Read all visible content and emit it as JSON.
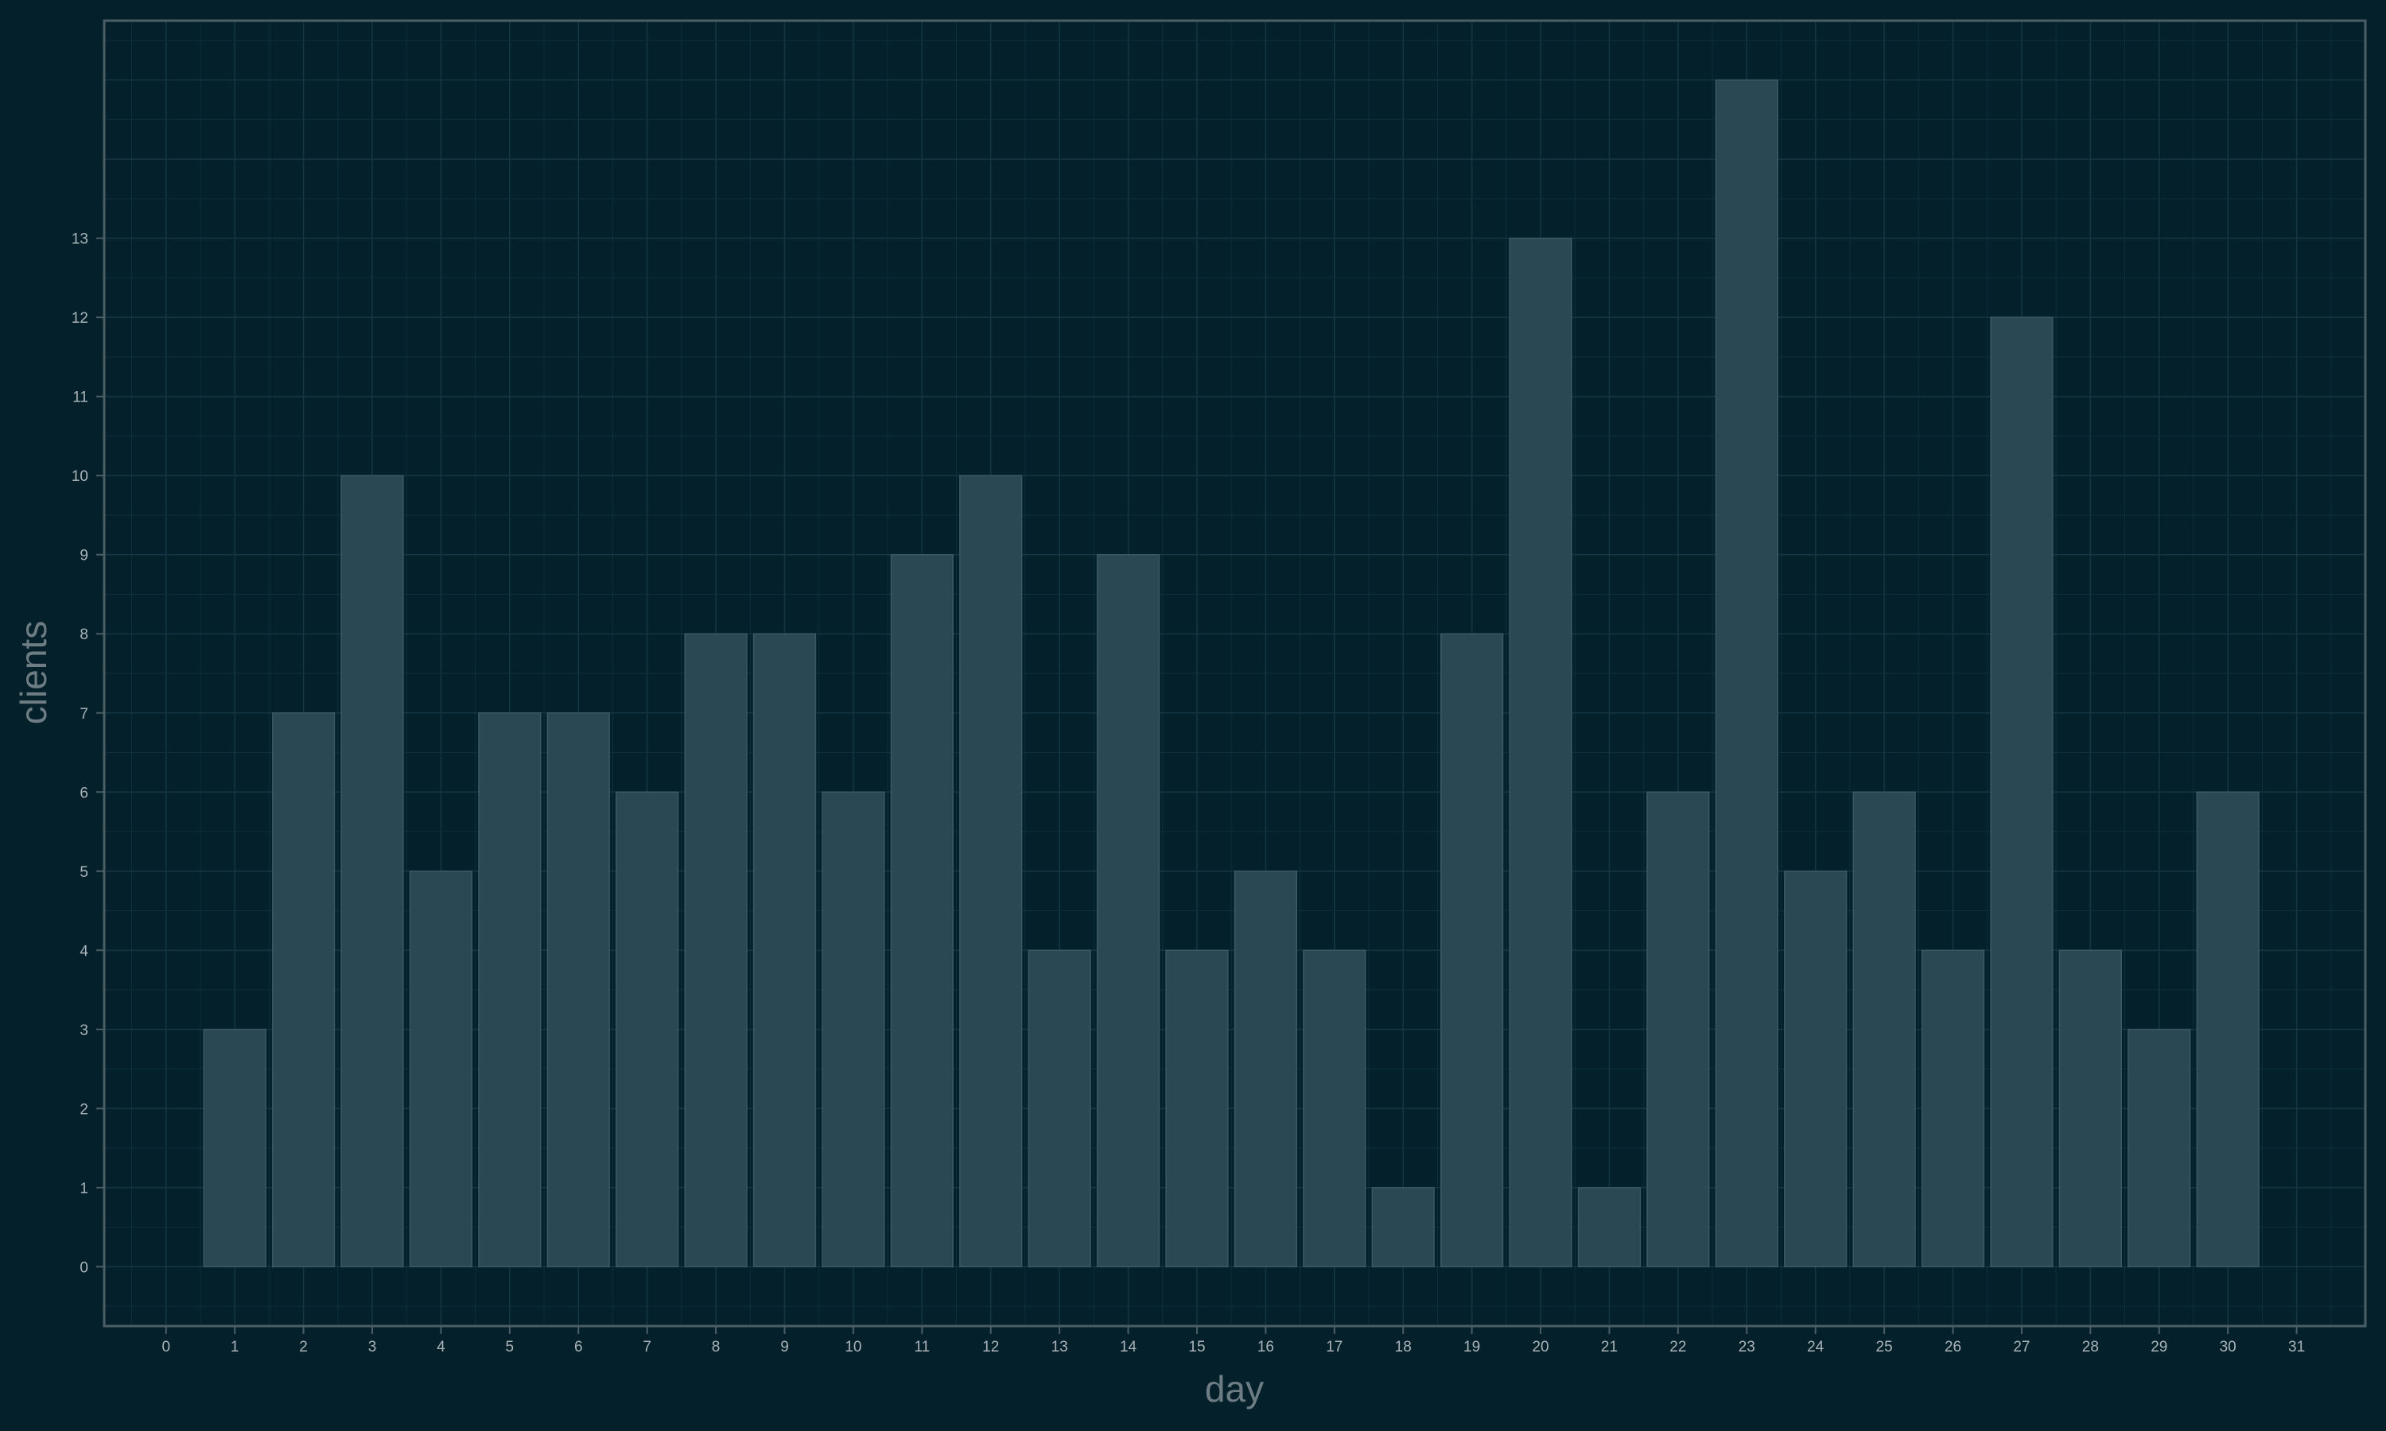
{
  "chart_data": {
    "type": "bar",
    "xlabel": "day",
    "ylabel": "clients",
    "x_ticks": [
      0,
      1,
      2,
      3,
      4,
      5,
      6,
      7,
      8,
      9,
      10,
      11,
      12,
      13,
      14,
      15,
      16,
      17,
      18,
      19,
      20,
      21,
      22,
      23,
      24,
      25,
      26,
      27,
      28,
      29,
      30,
      31
    ],
    "y_ticks": [
      0,
      1,
      2,
      3,
      4,
      5,
      6,
      7,
      8,
      9,
      10,
      11,
      12,
      13
    ],
    "categories": [
      1,
      2,
      3,
      4,
      5,
      6,
      7,
      8,
      9,
      10,
      11,
      12,
      13,
      14,
      15,
      16,
      17,
      18,
      19,
      20,
      21,
      22,
      23,
      24,
      25,
      26,
      27,
      28,
      29,
      30
    ],
    "values": [
      3,
      7,
      10,
      5,
      7,
      7,
      6,
      8,
      8,
      6,
      9,
      10,
      4,
      9,
      4,
      5,
      4,
      1,
      8,
      13,
      1,
      6,
      15,
      5,
      6,
      4,
      12,
      4,
      3,
      6
    ],
    "xlim": [
      -0.9,
      32
    ],
    "ylim": [
      -0.75,
      15.75
    ],
    "grid": true,
    "colors": {
      "background": "#03202b",
      "bar_fill": "#294853",
      "bar_edge": "#3b5964",
      "grid": "#143541",
      "frame": "#4b5e65",
      "tick_text": "#aab4b8",
      "axis_title": "#6d7d83"
    }
  }
}
